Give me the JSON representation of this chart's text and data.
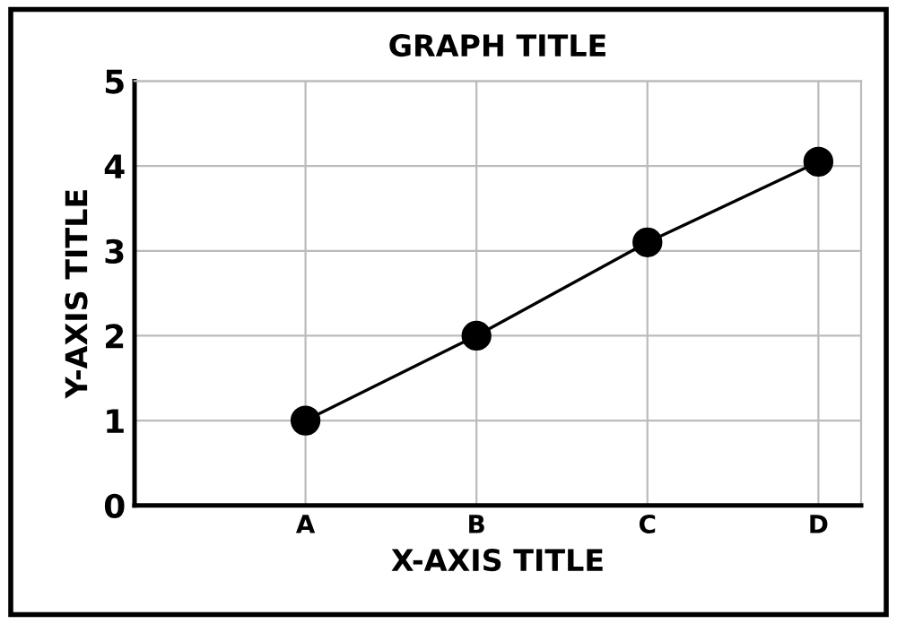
{
  "chart_data": {
    "type": "line",
    "title": "GRAPH TITLE",
    "xlabel": "X-AXIS TITLE",
    "ylabel": "Y-AXIS TITLE",
    "categories": [
      null,
      "A",
      "B",
      "C",
      "D"
    ],
    "series": [
      {
        "color": "#000000",
        "values": [
          null,
          1,
          2,
          3.1,
          4.05
        ]
      }
    ],
    "ylim": [
      0,
      5
    ],
    "yticks": [
      0,
      1,
      2,
      3,
      4,
      5
    ],
    "grid": true,
    "marker": "circle",
    "line_style": "solid",
    "legend": false
  }
}
